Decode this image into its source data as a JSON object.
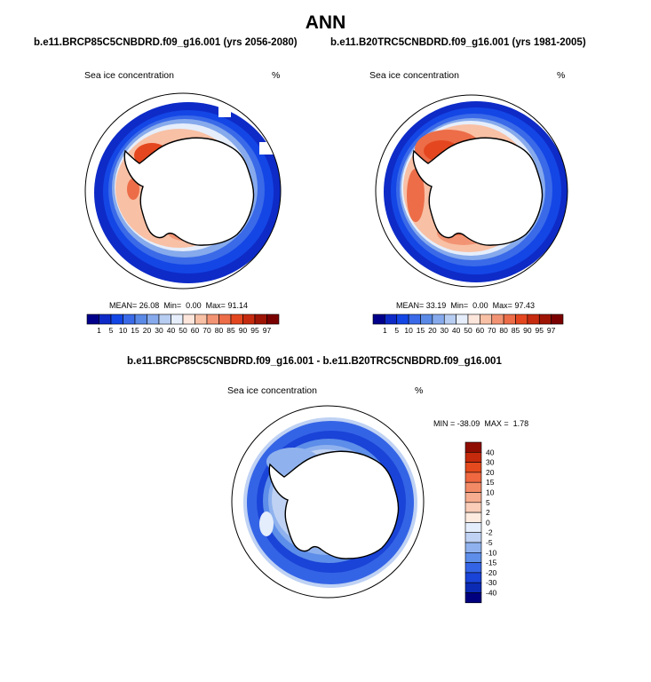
{
  "title": "ANN",
  "panels": [
    {
      "case": "b.e11.BRCP85C5CNBDRD.f09_g16.001 (yrs 2056-2080)",
      "variable": "Sea ice concentration",
      "units": "%",
      "stats": {
        "mean_label": "MEAN=",
        "mean": "26.08",
        "min_label": "Min=",
        "min": "0.00",
        "max_label": "Max=",
        "max": "91.14"
      }
    },
    {
      "case": "b.e11.B20TRC5CNBDRD.f09_g16.001 (yrs 1981-2005)",
      "variable": "Sea ice concentration",
      "units": "%",
      "stats": {
        "mean_label": "MEAN=",
        "mean": "33.19",
        "min_label": "Min=",
        "min": "0.00",
        "max_label": "Max=",
        "max": "97.43"
      }
    }
  ],
  "diff": {
    "title": "b.e11.BRCP85C5CNBDRD.f09_g16.001 - b.e11.B20TRC5CNBDRD.f09_g16.001",
    "variable": "Sea ice concentration",
    "units": "%",
    "stats": {
      "min_label": "MIN =",
      "min": "-38.09",
      "max_label": "MAX =",
      "max": "1.78"
    }
  },
  "abs_colorbar": {
    "levels": [
      "1",
      "5",
      "10",
      "15",
      "20",
      "30",
      "40",
      "50",
      "60",
      "70",
      "80",
      "85",
      "90",
      "95",
      "97"
    ],
    "colors": [
      "#00008b",
      "#0e2bc7",
      "#1446e6",
      "#3a6ae8",
      "#5a8ae6",
      "#86aaec",
      "#b8cdf2",
      "#e6eefb",
      "#fde6dc",
      "#f8c0a5",
      "#f29474",
      "#ec6d48",
      "#e4471f",
      "#c62b0f",
      "#9e1505",
      "#7a0000"
    ]
  },
  "diff_colorbar": {
    "levels": [
      "40",
      "30",
      "20",
      "15",
      "10",
      "5",
      "2",
      "0",
      "-2",
      "-5",
      "-10",
      "-15",
      "-20",
      "-30",
      "-40"
    ],
    "colors": [
      "#8f0d00",
      "#c42a0b",
      "#e44a1d",
      "#ef6840",
      "#f38a66",
      "#f6ad90",
      "#f9cdb8",
      "#fdebe0",
      "#e4edfb",
      "#bfd2f4",
      "#8fb2ee",
      "#5d8ee9",
      "#3464e6",
      "#1a43d7",
      "#0b2bb5",
      "#00007f"
    ]
  }
}
